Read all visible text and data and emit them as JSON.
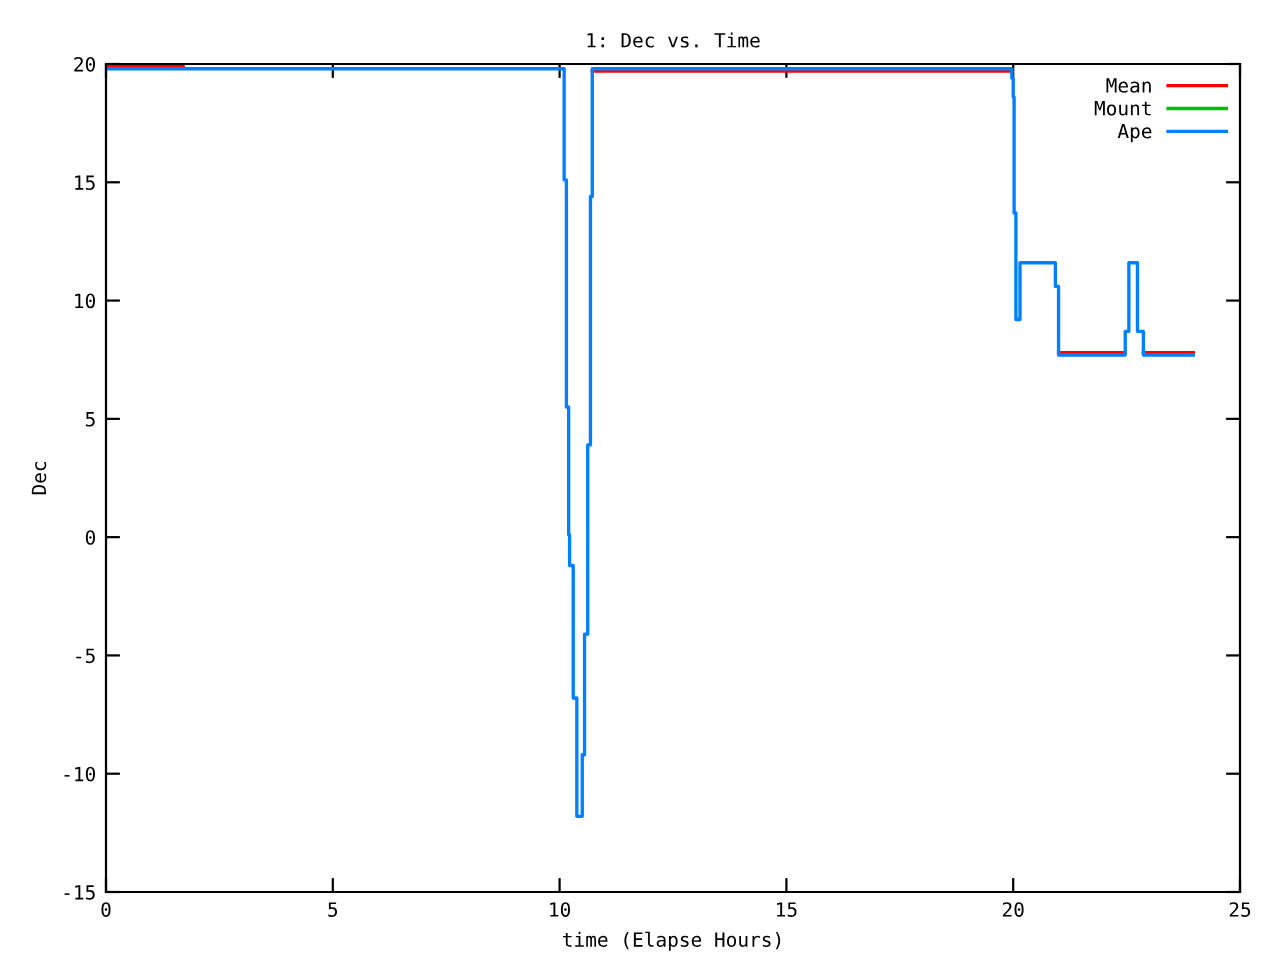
{
  "chart_data": {
    "type": "step",
    "title": "1: Dec vs. Time",
    "xlabel": "time (Elapse Hours)",
    "ylabel": "Dec",
    "xlim": [
      0,
      25
    ],
    "xticks": [
      0,
      5,
      10,
      15,
      20,
      25
    ],
    "ylim": [
      -15,
      20
    ],
    "yticks": [
      -15,
      -10,
      -5,
      0,
      5,
      10,
      15,
      20
    ],
    "grid": false,
    "legend": "top right",
    "marker": "none",
    "line_style": "solid",
    "series": [
      {
        "name": "Mean",
        "color": "#ff0000",
        "x": [
          0,
          1.7,
          10.72,
          19.97,
          21.0,
          22.47,
          22.87,
          23.97
        ],
        "values": [
          19.9,
          null,
          19.7,
          null,
          7.8,
          null,
          7.8,
          7.8
        ]
      },
      {
        "name": "Mount",
        "color": "#00c000"
      },
      {
        "name": "Ape",
        "color": "#0080ff",
        "x": [
          0,
          10.1,
          10.15,
          10.2,
          10.22,
          10.3,
          10.38,
          10.5,
          10.55,
          10.62,
          10.68,
          10.72,
          19.97,
          20.0,
          20.02,
          20.06,
          20.15,
          20.93,
          21.0,
          22.47,
          22.55,
          22.74,
          22.87,
          23.97
        ],
        "values": [
          19.8,
          15.1,
          5.5,
          0.1,
          -1.2,
          -6.8,
          -11.8,
          -9.2,
          -4.1,
          3.9,
          14.4,
          19.8,
          19.4,
          18.6,
          13.7,
          9.2,
          11.6,
          10.6,
          7.7,
          8.7,
          11.6,
          8.7,
          7.7,
          7.7
        ]
      }
    ]
  }
}
